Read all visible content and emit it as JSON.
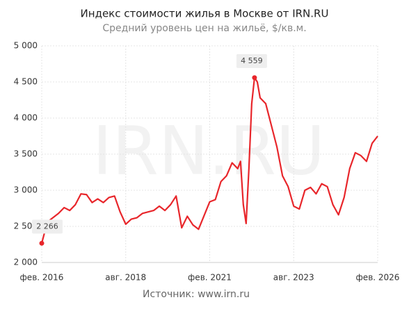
{
  "chart_data": {
    "type": "line",
    "title": "Индекс стоимости жилья в Москве от IRN.RU",
    "subtitle": "Средний уровень цен на жильё, $/кв.м.",
    "watermark": "IRN.RU",
    "source": "Источник: www.irn.ru",
    "x": [
      "2016-02",
      "2016-04",
      "2016-06",
      "2016-08",
      "2016-10",
      "2016-12",
      "2017-02",
      "2017-04",
      "2017-06",
      "2017-08",
      "2017-10",
      "2017-12",
      "2018-02",
      "2018-04",
      "2018-06",
      "2018-08",
      "2018-10",
      "2018-12",
      "2019-02",
      "2019-04",
      "2019-06",
      "2019-08",
      "2019-10",
      "2019-12",
      "2020-02",
      "2020-04",
      "2020-06",
      "2020-08",
      "2020-10",
      "2020-12",
      "2021-02",
      "2021-04",
      "2021-06",
      "2021-08",
      "2021-10",
      "2021-12",
      "2022-01",
      "2022-02",
      "2022-03",
      "2022-04",
      "2022-05",
      "2022-06",
      "2022-07",
      "2022-08",
      "2022-10",
      "2022-12",
      "2023-02",
      "2023-04",
      "2023-06",
      "2023-08",
      "2023-10",
      "2023-12",
      "2024-02",
      "2024-04",
      "2024-06",
      "2024-08",
      "2024-10",
      "2024-12",
      "2025-02",
      "2025-04",
      "2025-06",
      "2025-08",
      "2025-10",
      "2025-12",
      "2026-02"
    ],
    "series": [
      {
        "name": "$/кв.м.",
        "color": "#e8262b",
        "values": [
          2266,
          2560,
          2620,
          2680,
          2760,
          2720,
          2800,
          2950,
          2940,
          2830,
          2880,
          2830,
          2900,
          2920,
          2700,
          2530,
          2600,
          2620,
          2680,
          2700,
          2720,
          2780,
          2720,
          2800,
          2920,
          2480,
          2640,
          2520,
          2460,
          2650,
          2840,
          2870,
          3120,
          3200,
          3380,
          3300,
          3400,
          2800,
          2540,
          3300,
          4200,
          4559,
          4500,
          4280,
          4200,
          3900,
          3600,
          3200,
          3050,
          2780,
          2740,
          3000,
          3040,
          2950,
          3090,
          3050,
          2800,
          2660,
          2900,
          3300,
          3520,
          3480,
          3400,
          3650,
          3750
        ]
      }
    ],
    "annotations": [
      {
        "x": "2016-02",
        "value": 2266,
        "label": "2 266"
      },
      {
        "x": "2022-06",
        "value": 4559,
        "label": "4 559"
      }
    ],
    "xlim": [
      "2016-02",
      "2026-02"
    ],
    "xticks": [
      {
        "value": "2016-02",
        "label": "фев. 2016"
      },
      {
        "value": "2018-08",
        "label": "авг. 2018"
      },
      {
        "value": "2021-02",
        "label": "фев. 2021"
      },
      {
        "value": "2023-08",
        "label": "авг. 2023"
      },
      {
        "value": "2026-02",
        "label": "фев. 2026"
      }
    ],
    "ylim": [
      2000,
      5000
    ],
    "yticks": [
      {
        "value": 2000,
        "label": "2 000"
      },
      {
        "value": 2500,
        "label": "2 500"
      },
      {
        "value": 3000,
        "label": "3 000"
      },
      {
        "value": 3500,
        "label": "3 500"
      },
      {
        "value": 4000,
        "label": "4 000"
      },
      {
        "value": 4500,
        "label": "4 500"
      },
      {
        "value": 5000,
        "label": "5 000"
      }
    ],
    "grid": true
  }
}
